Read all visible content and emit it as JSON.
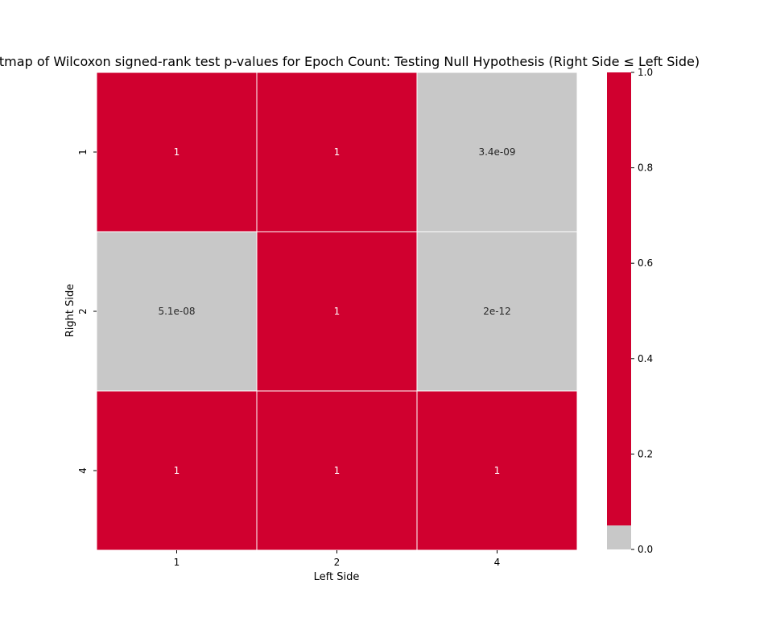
{
  "chart_data": {
    "type": "heatmap",
    "title": "tmap of Wilcoxon signed-rank test p-values for Epoch Count: Testing Null Hypothesis (Right Side ≤ Left Side)",
    "xlabel": "Left Side",
    "ylabel": "Right Side",
    "x_categories": [
      "1",
      "2",
      "4"
    ],
    "y_categories": [
      "1",
      "2",
      "4"
    ],
    "values": [
      [
        1,
        1,
        3.4e-09
      ],
      [
        5.1e-08,
        1,
        2e-12
      ],
      [
        1,
        1,
        1
      ]
    ],
    "cell_labels": [
      [
        "1",
        "1",
        "3.4e-09"
      ],
      [
        "5.1e-08",
        "1",
        "2e-12"
      ],
      [
        "1",
        "1",
        "1"
      ]
    ],
    "threshold": 0.05,
    "colors": {
      "above_threshold": "#d0002f",
      "below_threshold": "#c8c8c8",
      "gridline": "#ffffff",
      "text_on_red": "#ffffff",
      "text_on_gray": "#262626"
    },
    "colorbar": {
      "range": [
        0,
        1
      ],
      "ticks": [
        "0.0",
        "0.2",
        "0.4",
        "0.6",
        "0.8",
        "1.0"
      ],
      "tick_values": [
        0,
        0.2,
        0.4,
        0.6,
        0.8,
        1.0
      ]
    },
    "grid": false,
    "legend": "colorbar-right"
  }
}
